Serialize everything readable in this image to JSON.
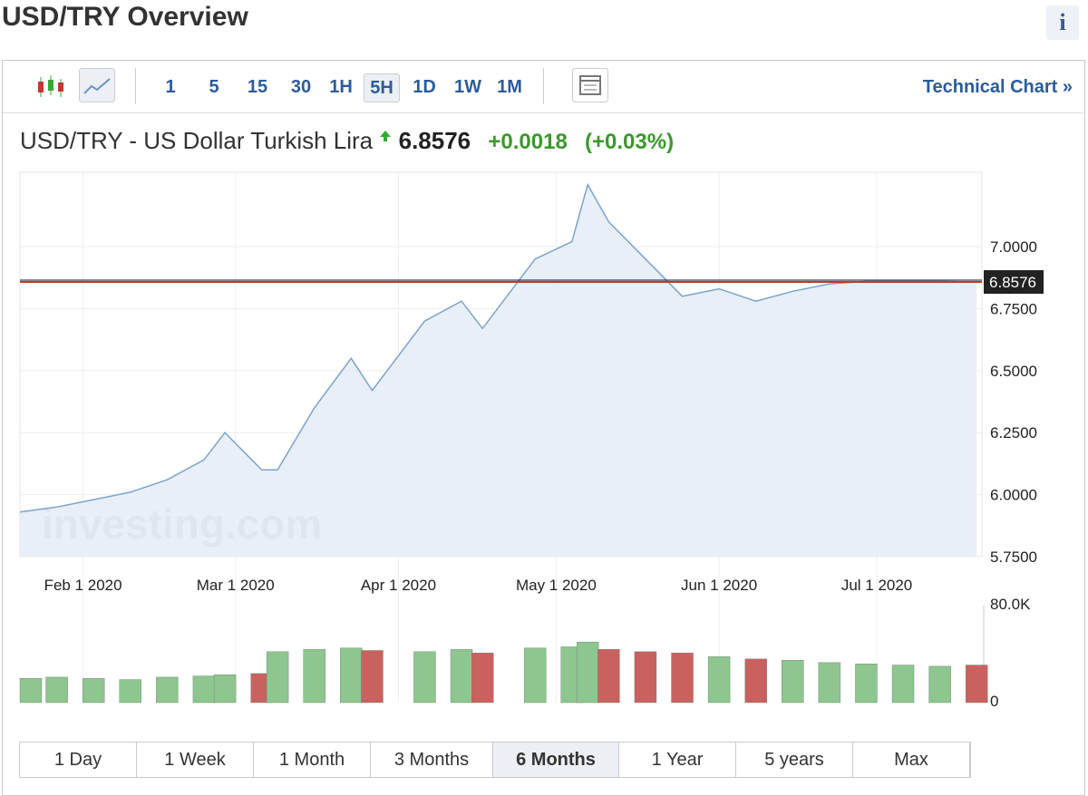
{
  "header": {
    "title": "USD/TRY Overview",
    "info": "i"
  },
  "toolbar": {
    "intervals": [
      "1",
      "5",
      "15",
      "30",
      "1H",
      "5H",
      "1D",
      "1W",
      "1M"
    ],
    "selected": 5,
    "technical": "Technical Chart »"
  },
  "quote": {
    "name": "USD/TRY - US Dollar Turkish Lira",
    "price": "6.8576",
    "change": "+0.0018",
    "change_pct": "(+0.03%)"
  },
  "chart_data": {
    "type": "line",
    "watermark": "investing.com",
    "x": [
      "2020-01-20",
      "2020-01-27",
      "2020-02-03",
      "2020-02-10",
      "2020-02-17",
      "2020-02-24",
      "2020-02-28",
      "2020-03-06",
      "2020-03-09",
      "2020-03-16",
      "2020-03-23",
      "2020-03-27",
      "2020-04-06",
      "2020-04-13",
      "2020-04-17",
      "2020-04-27",
      "2020-05-04",
      "2020-05-07",
      "2020-05-11",
      "2020-05-18",
      "2020-05-25",
      "2020-06-01",
      "2020-06-08",
      "2020-06-15",
      "2020-06-22",
      "2020-06-29",
      "2020-07-06",
      "2020-07-13",
      "2020-07-20"
    ],
    "series": [
      {
        "name": "USD/TRY",
        "color": "#7ba3d0",
        "values": [
          5.93,
          5.95,
          5.98,
          6.01,
          6.06,
          6.14,
          6.25,
          6.1,
          6.1,
          6.35,
          6.55,
          6.42,
          6.7,
          6.78,
          6.67,
          6.95,
          7.02,
          7.25,
          7.1,
          6.95,
          6.8,
          6.83,
          6.78,
          6.82,
          6.85,
          6.86,
          6.86,
          6.86,
          6.8576
        ]
      },
      {
        "name": "Volume",
        "axis": "volume",
        "up_color": "#8dc68f",
        "down_color": "#c9625f",
        "values": [
          20000,
          21000,
          20000,
          19000,
          21000,
          22000,
          23000,
          24000,
          42000,
          44000,
          45000,
          43000,
          42000,
          44000,
          41000,
          45000,
          46000,
          50000,
          44000,
          42000,
          41000,
          38000,
          36000,
          35000,
          33000,
          32000,
          31000,
          30000,
          31000
        ]
      }
    ],
    "xlim": [
      "2020-01-20",
      "2020-07-21"
    ],
    "xticks": [
      {
        "value": "2020-02-01",
        "label": "Feb 1 2020"
      },
      {
        "value": "2020-03-01",
        "label": "Mar 1 2020"
      },
      {
        "value": "2020-04-01",
        "label": "Apr 1 2020"
      },
      {
        "value": "2020-05-01",
        "label": "May 1 2020"
      },
      {
        "value": "2020-06-01",
        "label": "Jun 1 2020"
      },
      {
        "value": "2020-07-01",
        "label": "Jul 1 2020"
      }
    ],
    "ylim": [
      5.75,
      7.3
    ],
    "yticks": [
      {
        "value": 5.75,
        "label": "5.7500"
      },
      {
        "value": 6,
        "label": "6.0000"
      },
      {
        "value": 6.25,
        "label": "6.2500"
      },
      {
        "value": 6.5,
        "label": "6.5000"
      },
      {
        "value": 6.75,
        "label": "6.7500"
      },
      {
        "value": 7,
        "label": "7.0000"
      }
    ],
    "volume_lim": [
      0,
      80000
    ],
    "volume_ticks": [
      0,
      {
        "value": 80000,
        "label": "80.0K"
      }
    ],
    "last_value": 6.8576,
    "last_color": "#c0392b",
    "grid": true
  },
  "ranges": {
    "tabs": [
      "1 Day",
      "1 Week",
      "1 Month",
      "3 Months",
      "6 Months",
      "1 Year",
      "5 years",
      "Max"
    ],
    "selected": 4
  }
}
